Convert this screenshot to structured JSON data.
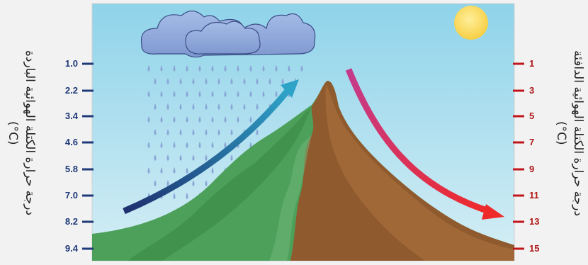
{
  "left_axis": {
    "label_line1": "درجة حرارة الكتلة الهوائية الباردة",
    "label_line2": "(°C)",
    "ticks": [
      "1.0",
      "2.2",
      "3.4",
      "4.6",
      "5.8",
      "7.0",
      "8.2",
      "9.4"
    ],
    "color": "#1f3a7a"
  },
  "right_axis": {
    "label_line1": "درجة حرارة الكتلة الهوائية الدافئة",
    "label_line2": "(°C)",
    "ticks": [
      "1",
      "3",
      "5",
      "7",
      "9",
      "11",
      "13",
      "15"
    ],
    "color": "#c0161b"
  },
  "colors": {
    "sky": "#a8dcec",
    "mountain_green": "#4aa35a",
    "mountain_brown": "#8b5a2b",
    "cold_arrow": "#1e3c7c",
    "warm_arrow": "#e5263a",
    "sun": "#f9da6e",
    "cloud": "#8ea6d9",
    "rain": "#8aa6d6"
  }
}
